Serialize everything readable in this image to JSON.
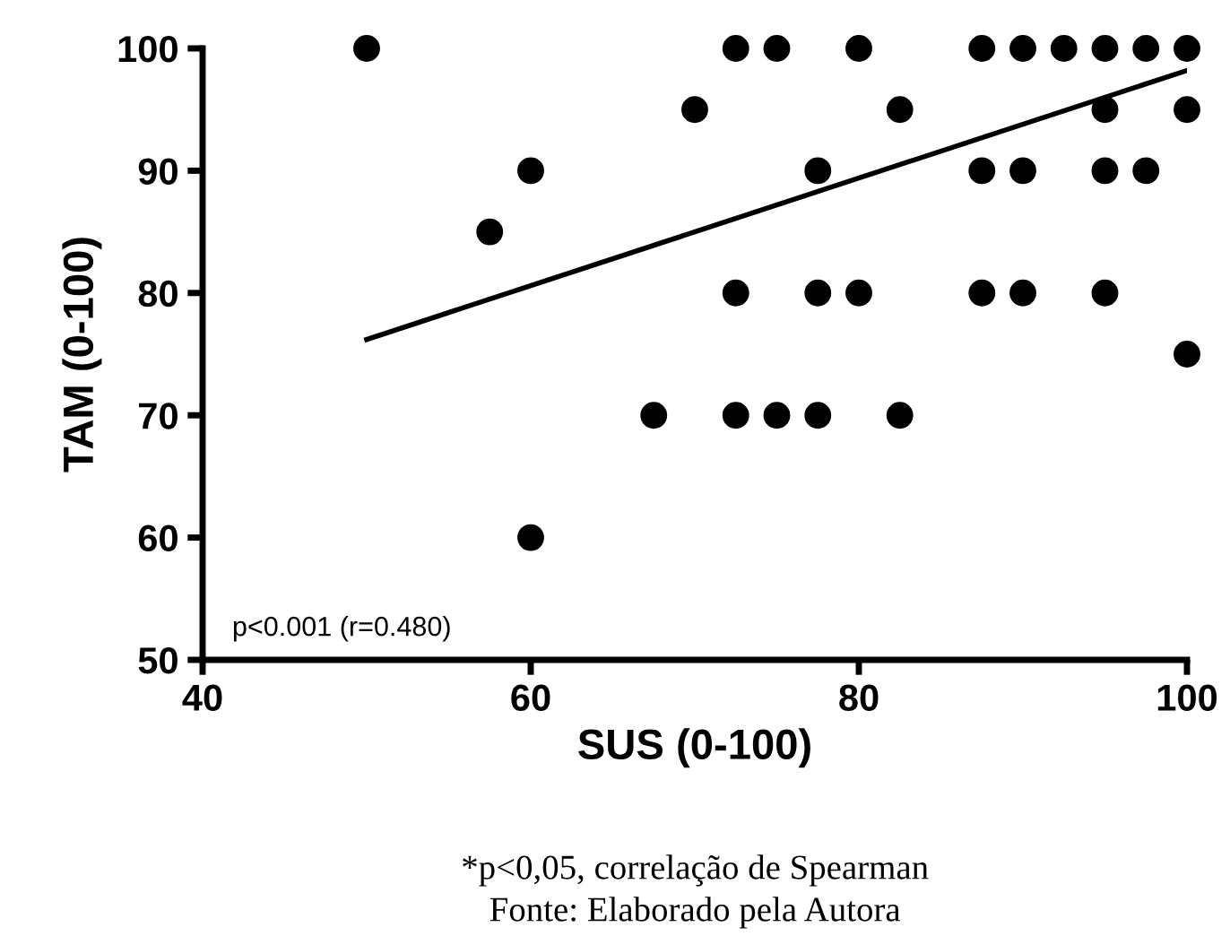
{
  "chart_data": {
    "type": "scatter",
    "xlabel": "SUS (0-100)",
    "ylabel": "TAM (0-100)",
    "xlim": [
      40,
      100
    ],
    "ylim": [
      50,
      100
    ],
    "xticks": [
      40,
      60,
      80,
      100
    ],
    "yticks": [
      50,
      60,
      70,
      80,
      90,
      100
    ],
    "grid": false,
    "series": [
      {
        "marker": "circle",
        "color": "#000000",
        "x": [
          50,
          72.5,
          75,
          80,
          87.5,
          90,
          92.5,
          95,
          97.5,
          100,
          70,
          82.5,
          95,
          100,
          60,
          77.5,
          87.5,
          90,
          95,
          97.5,
          57.5,
          72.5,
          77.5,
          80,
          87.5,
          90,
          95,
          100,
          67.5,
          72.5,
          75,
          77.5,
          82.5,
          60
        ],
        "values": [
          100,
          100,
          100,
          100,
          100,
          100,
          100,
          100,
          100,
          100,
          95,
          95,
          95,
          95,
          90,
          90,
          90,
          90,
          90,
          90,
          85,
          80,
          80,
          80,
          80,
          80,
          80,
          75,
          70,
          70,
          70,
          70,
          70,
          60
        ]
      },
      {
        "type": "line",
        "color": "#000000",
        "x": [
          50,
          100
        ],
        "values": [
          76.2,
          98.2
        ]
      }
    ],
    "annotations": [
      "p<0.001 (r=0.480)",
      "*p<0,05, correlação de Spearman",
      "Fonte: Elaborado pela Autora"
    ]
  }
}
